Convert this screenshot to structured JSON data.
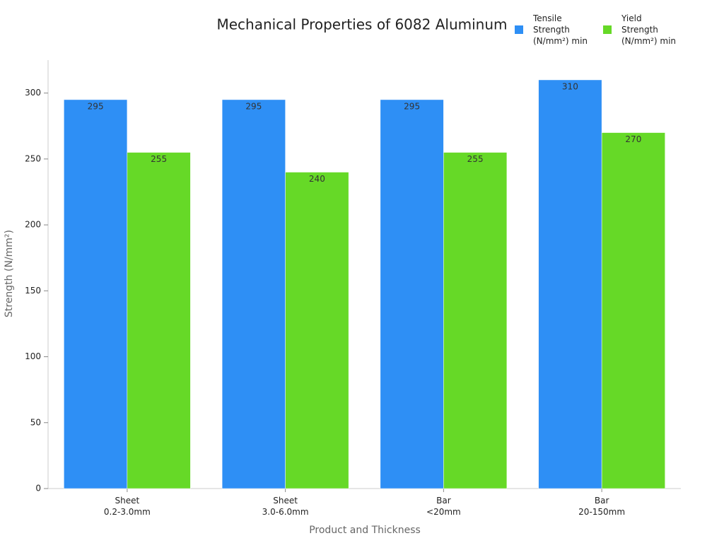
{
  "chart_data": {
    "type": "bar",
    "title": "Mechanical Properties of 6082 Aluminum",
    "x_label": "Product and Thickness",
    "y_label": "Strength (N/mm²)",
    "categories": [
      "Sheet\n0.2-3.0mm",
      "Sheet\n3.0-6.0mm",
      "Bar\n<20mm",
      "Bar\n20-150mm"
    ],
    "series": [
      {
        "name": "Tensile Strength (N/mm²) min",
        "color": "#2e8ff5",
        "values": [
          295,
          295,
          295,
          310
        ]
      },
      {
        "name": "Yield Strength (N/mm²) min",
        "color": "#66d927",
        "values": [
          255,
          240,
          255,
          270
        ]
      }
    ],
    "ylim": [
      0,
      325
    ],
    "yticks": [
      0,
      50,
      100,
      150,
      200,
      250,
      300
    ],
    "legend": "top-right"
  }
}
